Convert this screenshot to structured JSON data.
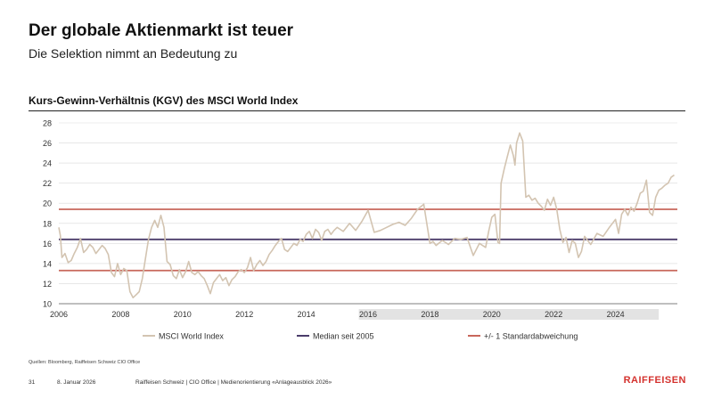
{
  "header": {
    "title": "Der globale Aktienmarkt ist teuer",
    "subtitle": "Die Selektion nimmt an Bedeutung zu"
  },
  "chart_heading": "Kurs-Gewinn-Verhältnis (KGV) des MSCI World Index",
  "chart_data": {
    "type": "line",
    "title": "Kurs-Gewinn-Verhältnis (KGV) des MSCI World Index",
    "xlabel": "",
    "ylabel": "",
    "xlim": [
      2006,
      2026
    ],
    "ylim": [
      10,
      28
    ],
    "y_ticks": [
      "10",
      "12",
      "14",
      "16",
      "18",
      "20",
      "22",
      "24",
      "26",
      "28"
    ],
    "x_ticks": [
      "2006",
      "2008",
      "2010",
      "2012",
      "2014",
      "2016",
      "2018",
      "2020",
      "2022",
      "2024"
    ],
    "shaded_x_ticks": [
      "2016",
      "2018",
      "2020",
      "2022",
      "2024"
    ],
    "series": [
      {
        "name": "MSCI World Index",
        "color": "#d3c4b1",
        "x": [
          2006.0,
          2006.05,
          2006.1,
          2006.2,
          2006.3,
          2006.4,
          2006.5,
          2006.6,
          2006.7,
          2006.8,
          2006.9,
          2007.0,
          2007.1,
          2007.2,
          2007.3,
          2007.4,
          2007.5,
          2007.6,
          2007.7,
          2007.8,
          2007.9,
          2008.0,
          2008.1,
          2008.2,
          2008.3,
          2008.4,
          2008.5,
          2008.6,
          2008.7,
          2008.8,
          2008.9,
          2009.0,
          2009.1,
          2009.2,
          2009.3,
          2009.4,
          2009.5,
          2009.6,
          2009.7,
          2009.8,
          2009.9,
          2010.0,
          2010.1,
          2010.15,
          2010.2,
          2010.3,
          2010.4,
          2010.5,
          2010.6,
          2010.7,
          2010.8,
          2010.9,
          2011.0,
          2011.1,
          2011.2,
          2011.3,
          2011.4,
          2011.5,
          2011.6,
          2011.7,
          2011.8,
          2011.9,
          2012.0,
          2012.1,
          2012.2,
          2012.3,
          2012.4,
          2012.5,
          2012.6,
          2012.7,
          2012.8,
          2012.9,
          2013.0,
          2013.1,
          2013.2,
          2013.3,
          2013.4,
          2013.5,
          2013.6,
          2013.7,
          2013.8,
          2013.9,
          2014.0,
          2014.1,
          2014.2,
          2014.3,
          2014.4,
          2014.5,
          2014.6,
          2014.7,
          2014.8,
          2014.9,
          2015.0,
          2015.2,
          2015.4,
          2015.6,
          2015.8,
          2016.0,
          2016.2,
          2016.4,
          2016.6,
          2016.8,
          2017.0,
          2017.2,
          2017.4,
          2017.6,
          2017.8,
          2018.0,
          2018.1,
          2018.2,
          2018.4,
          2018.6,
          2018.8,
          2019.0,
          2019.2,
          2019.4,
          2019.6,
          2019.8,
          2019.9,
          2020.0,
          2020.1,
          2020.2,
          2020.25,
          2020.3,
          2020.4,
          2020.5,
          2020.6,
          2020.7,
          2020.75,
          2020.8,
          2020.9,
          2021.0,
          2021.1,
          2021.2,
          2021.3,
          2021.4,
          2021.5,
          2021.6,
          2021.7,
          2021.8,
          2021.9,
          2022.0,
          2022.1,
          2022.2,
          2022.3,
          2022.4,
          2022.5,
          2022.6,
          2022.7,
          2022.8,
          2022.9,
          2023.0,
          2023.2,
          2023.4,
          2023.6,
          2023.8,
          2024.0,
          2024.1,
          2024.2,
          2024.3,
          2024.4,
          2024.5,
          2024.6,
          2024.7,
          2024.8,
          2024.9,
          2025.0,
          2025.1,
          2025.2,
          2025.3,
          2025.4,
          2025.5,
          2025.6,
          2025.7,
          2025.8,
          2025.9
        ],
        "values": [
          17.6,
          16.8,
          14.6,
          15.0,
          14.1,
          14.3,
          15.0,
          15.6,
          16.5,
          15.1,
          15.4,
          15.9,
          15.6,
          15.0,
          15.4,
          15.8,
          15.5,
          14.9,
          13.1,
          12.7,
          14.0,
          12.9,
          13.5,
          13.3,
          11.2,
          10.6,
          10.9,
          11.2,
          12.5,
          14.5,
          16.4,
          17.6,
          18.3,
          17.6,
          18.8,
          17.6,
          14.2,
          13.9,
          12.8,
          12.5,
          13.4,
          12.6,
          13.2,
          13.7,
          14.2,
          13.1,
          12.9,
          13.2,
          12.8,
          12.5,
          11.8,
          11.0,
          12.1,
          12.5,
          12.9,
          12.3,
          12.6,
          11.8,
          12.4,
          12.7,
          13.2,
          13.4,
          13.1,
          13.6,
          14.6,
          13.3,
          13.9,
          14.3,
          13.8,
          14.2,
          14.9,
          15.3,
          15.8,
          16.2,
          16.5,
          15.4,
          15.2,
          15.6,
          16.0,
          15.8,
          16.4,
          16.2,
          16.9,
          17.2,
          16.5,
          17.4,
          17.1,
          16.3,
          17.2,
          17.4,
          16.9,
          17.3,
          17.6,
          17.2,
          18.0,
          17.3,
          18.2,
          19.3,
          17.1,
          17.3,
          17.6,
          17.9,
          18.1,
          17.8,
          18.5,
          19.4,
          19.9,
          16.0,
          16.2,
          15.8,
          16.3,
          15.9,
          16.5,
          16.4,
          16.6,
          14.8,
          16.0,
          15.6,
          17.2,
          18.6,
          18.9,
          16.1,
          16.0,
          22.0,
          23.4,
          24.6,
          25.8,
          24.7,
          23.8,
          26.0,
          27.0,
          26.2,
          20.6,
          20.8,
          20.3,
          20.5,
          20.0,
          19.7,
          19.3,
          20.4,
          19.8,
          20.6,
          19.4,
          17.4,
          16.1,
          16.6,
          15.1,
          16.3,
          16.0,
          14.6,
          15.2,
          16.7,
          15.9,
          17.0,
          16.7,
          17.6,
          18.4,
          17.0,
          18.9,
          19.4,
          18.8,
          19.6,
          19.2,
          20.0,
          21.0,
          21.2,
          22.3,
          19.1,
          18.8,
          20.6,
          21.3,
          21.5,
          21.8,
          22.0,
          22.6,
          22.8
        ]
      },
      {
        "name": "Median seit 2005",
        "color": "#4b3c6a",
        "values": [
          16.4
        ]
      },
      {
        "name": "+/- 1 Standardabweichung",
        "color": "#c8675b",
        "values": [
          19.4,
          13.3
        ]
      }
    ],
    "legend_position": "bottom",
    "grid": true
  },
  "legend": {
    "items": [
      {
        "label": "MSCI World Index",
        "color": "#d3c4b1"
      },
      {
        "label": "Median seit 2005",
        "color": "#4b3c6a"
      },
      {
        "label": "+/- 1 Standardabweichung",
        "color": "#c8675b"
      }
    ]
  },
  "source_note": "Quellen: Bloomberg, Raiffeisen Schweiz CIO Office",
  "footer": {
    "page_number": "31",
    "date": "8. Januar 2026",
    "text": "Raiffeisen Schweiz | CIO Office | Medienorientierung «Anlageausblick 2026»",
    "brand": "RAIFFEISEN"
  }
}
